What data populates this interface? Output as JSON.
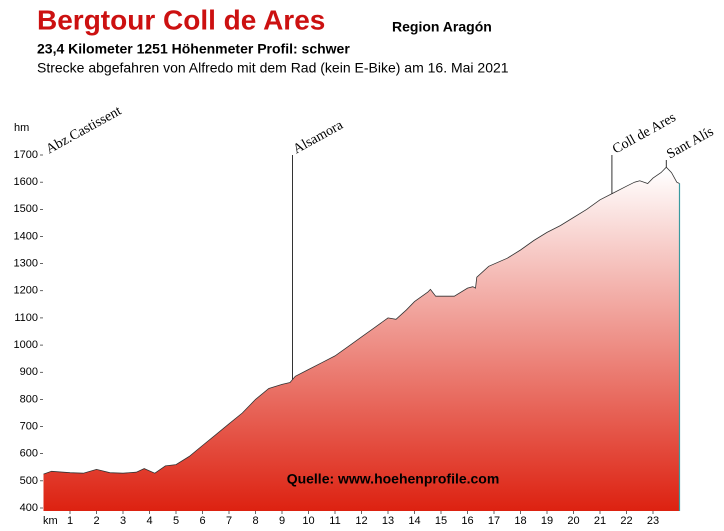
{
  "chart_data": {
    "type": "area",
    "title": "Bergtour Coll de Ares",
    "region": "Region Aragón",
    "subtitle": "23,4 Kilometer  1251 Höhenmeter  Profil: schwer",
    "description": "Strecke abgefahren von Alfredo mit dem Rad (kein E-Bike) am 16. Mai 2021",
    "source": "Quelle: www.hoehenprofile.com",
    "x_label": "km",
    "y_label": "hm",
    "color": "#dd2211",
    "x": [
      0,
      0.3,
      1,
      1.5,
      2,
      2.5,
      3,
      3.5,
      3.8,
      4.2,
      4.6,
      5,
      5.5,
      6,
      6.5,
      7,
      7.5,
      8,
      8.5,
      9,
      9.3,
      9.5,
      10,
      10.5,
      11,
      11.5,
      12,
      12.5,
      13,
      13.3,
      13.7,
      14,
      14.5,
      14.6,
      14.8,
      15.5,
      16,
      16.2,
      16.3,
      16.35,
      16.8,
      17.5,
      18,
      18.5,
      19,
      19.5,
      20,
      20.5,
      21,
      21.5,
      22,
      22.3,
      22.5,
      22.8,
      23,
      23.3,
      23.5,
      23.7,
      23.9,
      24.0
    ],
    "values": [
      525,
      535,
      530,
      528,
      542,
      530,
      528,
      532,
      545,
      528,
      555,
      560,
      590,
      630,
      670,
      710,
      750,
      800,
      840,
      855,
      862,
      885,
      910,
      935,
      960,
      995,
      1030,
      1065,
      1100,
      1095,
      1130,
      1160,
      1195,
      1205,
      1180,
      1180,
      1210,
      1215,
      1210,
      1250,
      1290,
      1320,
      1350,
      1385,
      1415,
      1440,
      1470,
      1500,
      1535,
      1560,
      1585,
      1600,
      1605,
      1595,
      1615,
      1635,
      1655,
      1635,
      1600,
      1595
    ],
    "xlim": [
      0,
      24.1
    ],
    "ylim": [
      400,
      1700
    ],
    "xticks": [
      1,
      2,
      3,
      4,
      5,
      6,
      7,
      8,
      9,
      10,
      11,
      12,
      13,
      14,
      15,
      16,
      17,
      18,
      19,
      20,
      21,
      22,
      23
    ],
    "yticks": [
      400,
      500,
      600,
      700,
      800,
      900,
      1000,
      1100,
      1200,
      1300,
      1400,
      1500,
      1600,
      1700
    ],
    "annotations": [
      {
        "label": "Abz.Castissent",
        "x": 0
      },
      {
        "label": "Alsamora",
        "x": 9.4
      },
      {
        "label": "Coll de Ares",
        "x": 21.45
      },
      {
        "label": "Sant Alís",
        "x": 23.5
      }
    ]
  }
}
